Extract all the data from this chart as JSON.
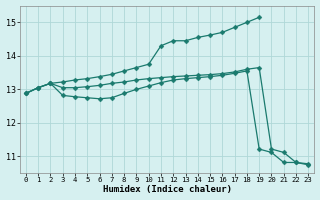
{
  "xlabel": "Humidex (Indice chaleur)",
  "background_color": "#d6f0f0",
  "grid_color": "#afd8d8",
  "line_color": "#1a7a6e",
  "xlim": [
    -0.5,
    23.5
  ],
  "ylim": [
    10.5,
    15.5
  ],
  "yticks": [
    11,
    12,
    13,
    14,
    15
  ],
  "xticks": [
    0,
    1,
    2,
    3,
    4,
    5,
    6,
    7,
    8,
    9,
    10,
    11,
    12,
    13,
    14,
    15,
    16,
    17,
    18,
    19,
    20,
    21,
    22,
    23
  ],
  "line1_x": [
    0,
    1,
    2,
    3,
    4,
    5,
    6,
    7,
    8,
    9,
    10,
    11,
    12,
    13,
    14,
    15,
    16,
    17,
    18,
    19
  ],
  "line1_y": [
    12.88,
    13.05,
    13.18,
    13.22,
    13.28,
    13.32,
    13.38,
    13.45,
    13.55,
    13.65,
    13.75,
    14.3,
    14.45,
    14.45,
    14.55,
    14.62,
    14.7,
    14.85,
    15.0,
    15.15
  ],
  "line2_x": [
    0,
    1,
    2,
    3,
    4,
    5,
    6,
    7,
    8,
    9,
    10,
    11,
    12,
    13,
    14,
    15,
    16,
    17,
    18,
    19,
    20,
    21,
    22,
    23
  ],
  "line2_y": [
    12.88,
    13.05,
    13.18,
    13.05,
    13.05,
    13.08,
    13.12,
    13.18,
    13.22,
    13.28,
    13.32,
    13.35,
    13.38,
    13.4,
    13.42,
    13.44,
    13.47,
    13.52,
    13.6,
    13.65,
    11.22,
    11.12,
    10.82,
    10.78
  ],
  "line3_x": [
    0,
    1,
    2,
    3,
    4,
    5,
    6,
    7,
    8,
    9,
    10,
    11,
    12,
    13,
    14,
    15,
    16,
    17,
    18,
    19,
    20,
    21,
    22,
    23
  ],
  "line3_y": [
    12.88,
    13.05,
    13.18,
    12.82,
    12.78,
    12.75,
    12.72,
    12.75,
    12.88,
    13.0,
    13.1,
    13.2,
    13.28,
    13.32,
    13.35,
    13.38,
    13.42,
    13.48,
    13.55,
    11.22,
    11.12,
    10.82,
    10.82,
    10.75
  ]
}
